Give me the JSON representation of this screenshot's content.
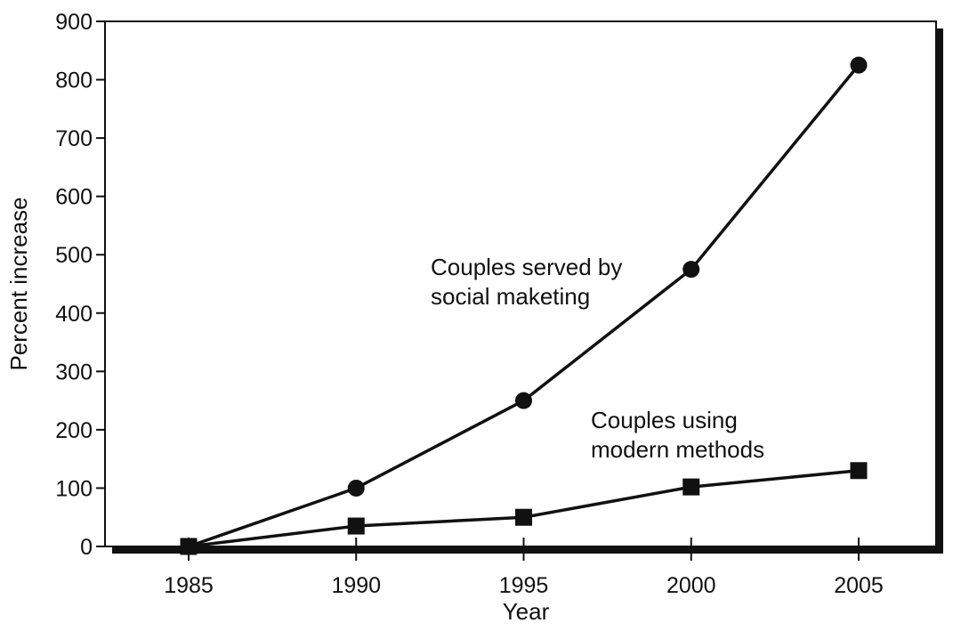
{
  "chart_data": {
    "type": "line",
    "x": [
      1985,
      1990,
      1995,
      2000,
      2005
    ],
    "xlabel": "Year",
    "ylabel": "Percent increase",
    "ylim": [
      0,
      900
    ],
    "xlim": [
      1985,
      2005
    ],
    "yticks": [
      "0",
      "100",
      "200",
      "300",
      "400",
      "500",
      "600",
      "700",
      "800",
      "900"
    ],
    "xticks": [
      "1985",
      "1990",
      "1995",
      "2000",
      "2005"
    ],
    "grid": false,
    "series": [
      {
        "name": "Couples served by social maketing",
        "label_lines": [
          "Couples served by",
          "social maketing"
        ],
        "marker": "circle",
        "values": [
          0,
          100,
          250,
          475,
          825
        ]
      },
      {
        "name": "Couples using modern methods",
        "label_lines": [
          "Couples using",
          "modern methods"
        ],
        "marker": "square",
        "values": [
          0,
          35,
          50,
          102,
          130
        ]
      }
    ],
    "colors": {
      "line": "#111111",
      "marker": "#111111",
      "frame": "#111111"
    }
  }
}
